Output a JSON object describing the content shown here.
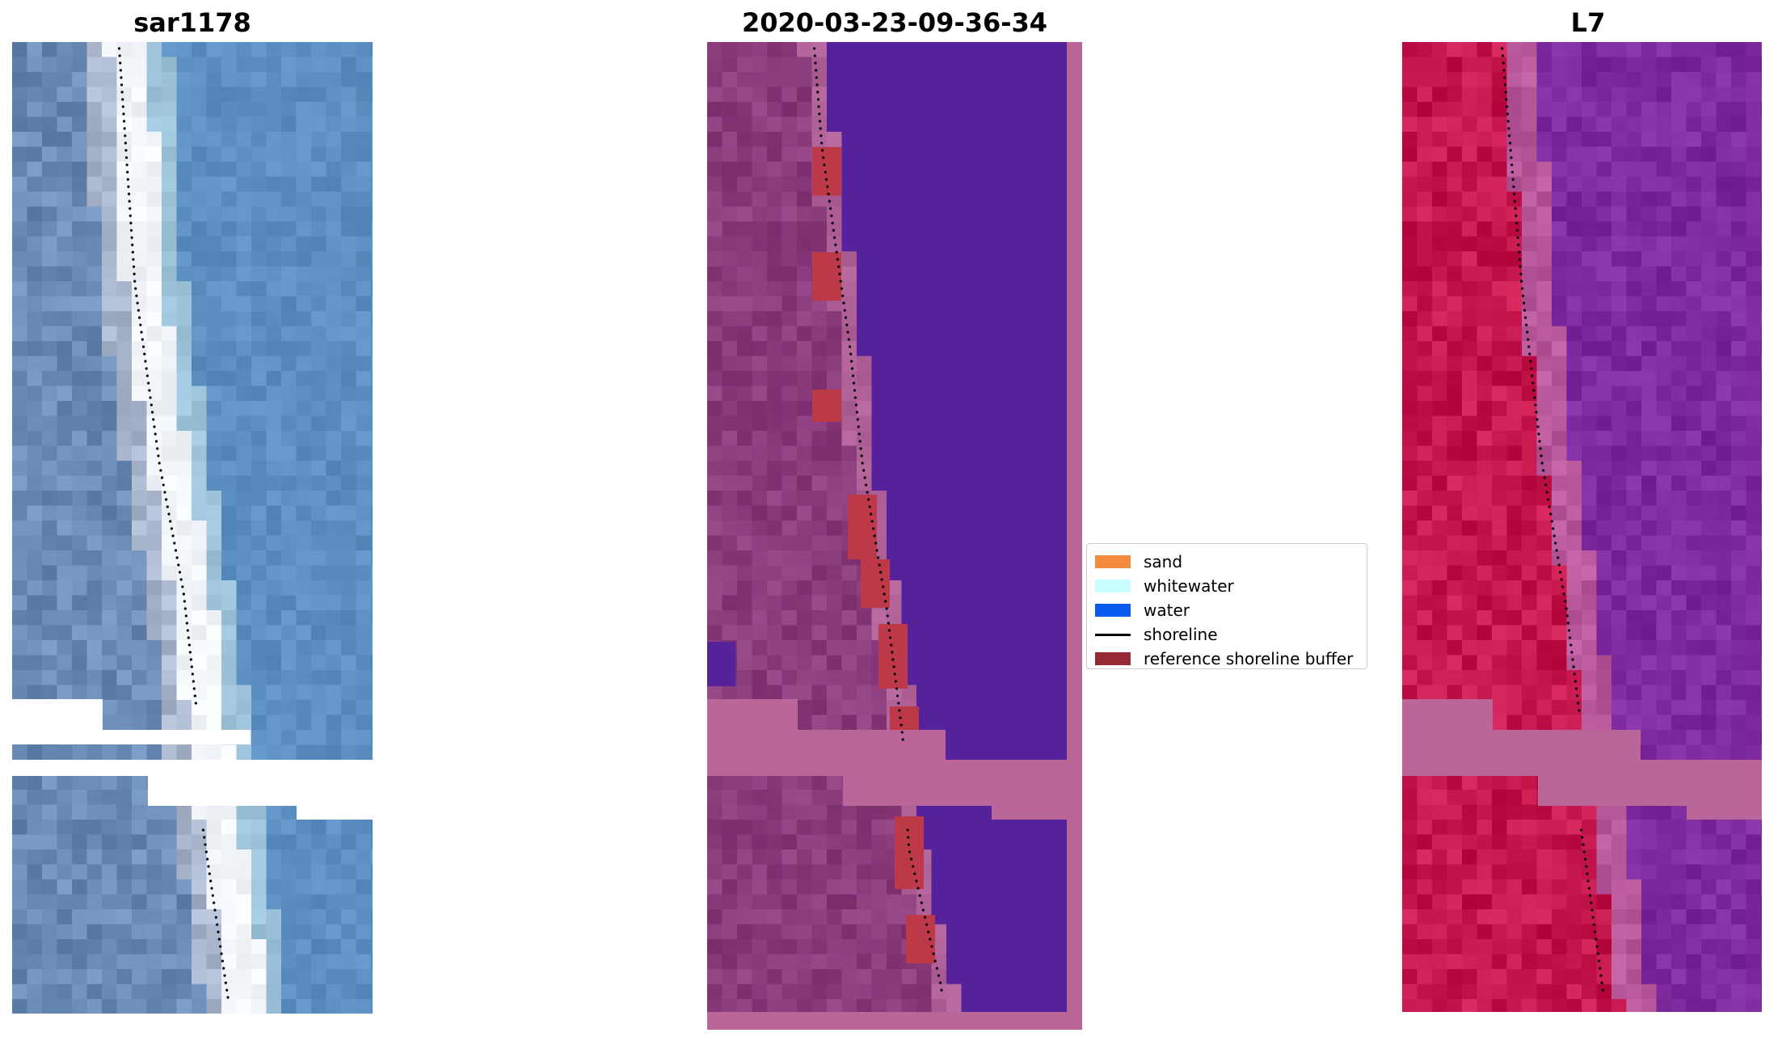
{
  "panels": [
    {
      "title": "sar1178"
    },
    {
      "title": "2020-03-23-09-36-34"
    },
    {
      "title": "L7"
    }
  ],
  "legend": {
    "items": [
      {
        "label": "sand",
        "kind": "patch",
        "color": "#f58b3d"
      },
      {
        "label": "whitewater",
        "kind": "patch",
        "color": "#c8ffff"
      },
      {
        "label": "water",
        "kind": "patch",
        "color": "#0a5cf0"
      },
      {
        "label": "shoreline",
        "kind": "line",
        "color": "#000000"
      },
      {
        "label": "reference shoreline buffer",
        "kind": "patch",
        "color": "#952a35"
      }
    ]
  },
  "colors": {
    "rgb_sea": "#5b8fc1",
    "rgb_land": "#6a8bb6",
    "rgb_surf": "#f2f6fa",
    "class_sea": "#55229b",
    "class_land": "#8a3b7c",
    "class_nodata": "#bb6698",
    "class_buffer": "#be3948",
    "ndwi_land": "#c5174d",
    "ndwi_sea": "#7d2a9f",
    "ndwi_nodata": "#bb6698",
    "shoreline_dots": "#000000"
  }
}
